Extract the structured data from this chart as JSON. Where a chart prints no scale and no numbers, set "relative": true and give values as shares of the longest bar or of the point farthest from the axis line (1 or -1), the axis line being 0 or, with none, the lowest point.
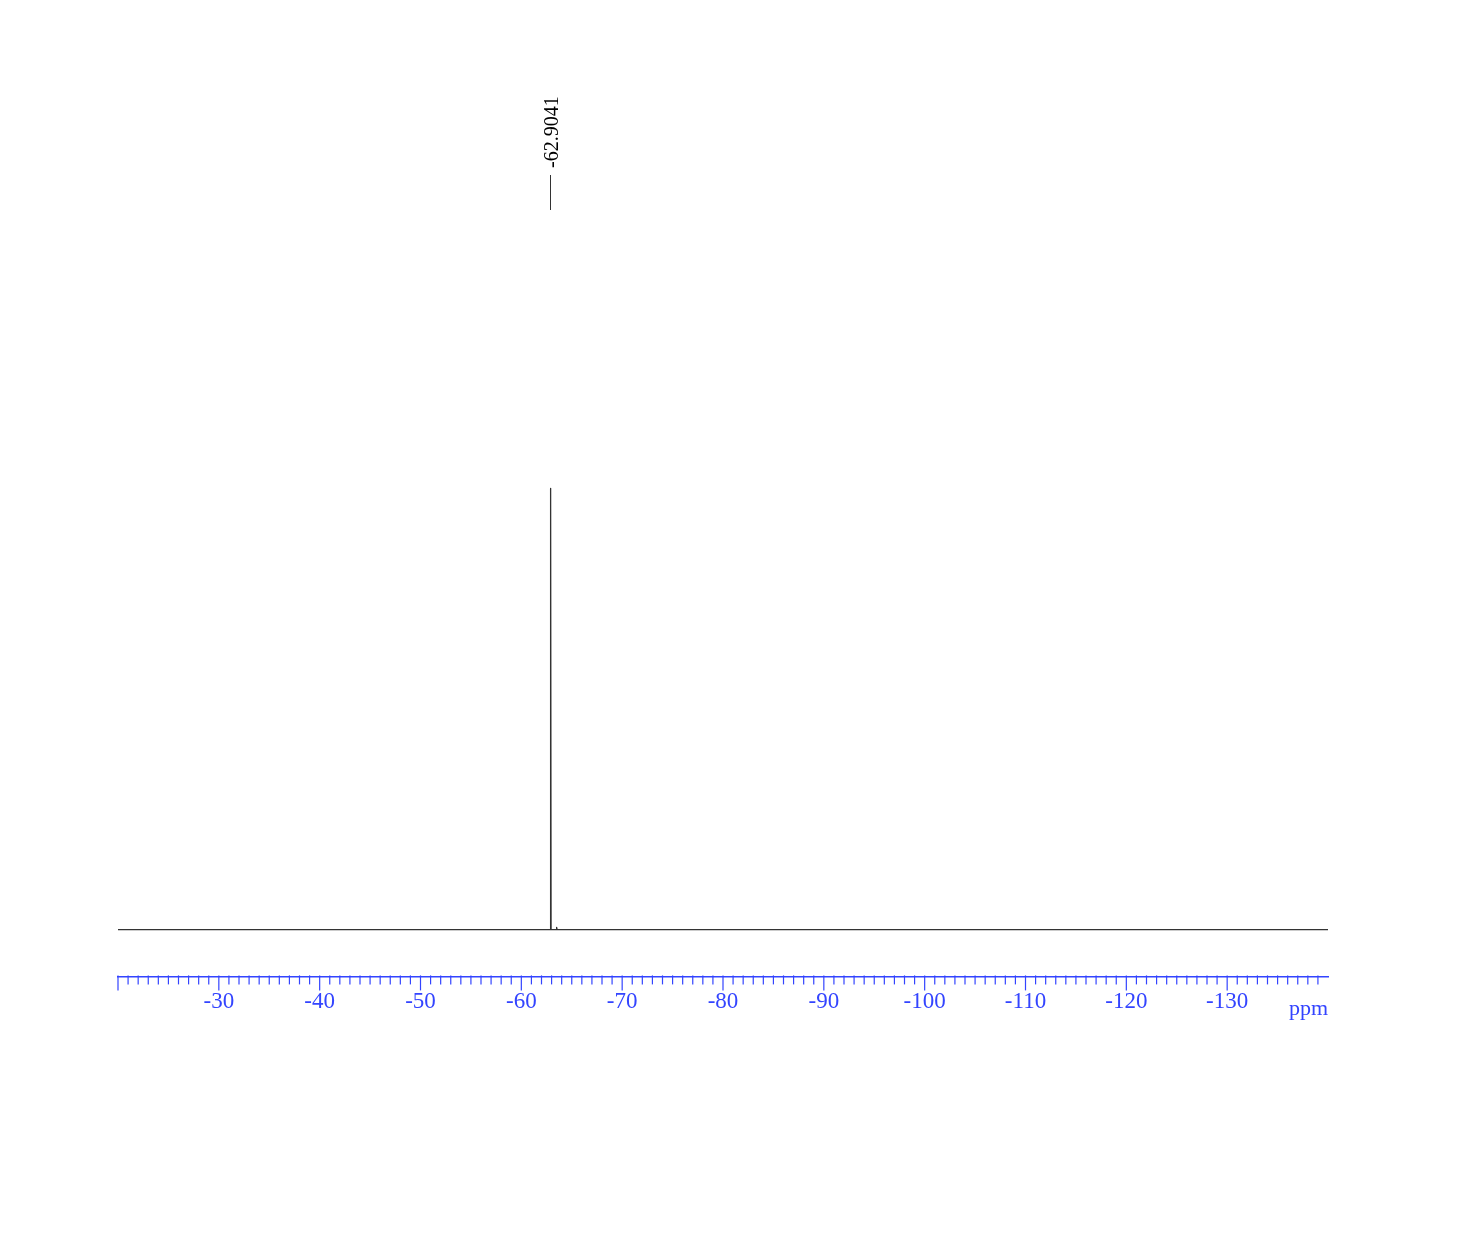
{
  "chart_data": {
    "type": "line",
    "relative": true,
    "xlabel": "ppm",
    "marker": "none",
    "grid": false,
    "tick_labels": "x",
    "xlim": [
      -20,
      -140
    ],
    "xticks": [
      -30,
      -40,
      -50,
      -60,
      -70,
      -80,
      -90,
      -100,
      -110,
      -120,
      -130
    ],
    "annotations": [
      "-62.9041"
    ],
    "series": [
      {
        "color": "#333333",
        "x": [
          -20,
          -62.86,
          -62.9041,
          -62.95,
          -63.45,
          -63.5,
          -63.55,
          -140
        ],
        "values": [
          0,
          0,
          1,
          0,
          0,
          0.005,
          0,
          0
        ]
      }
    ]
  }
}
